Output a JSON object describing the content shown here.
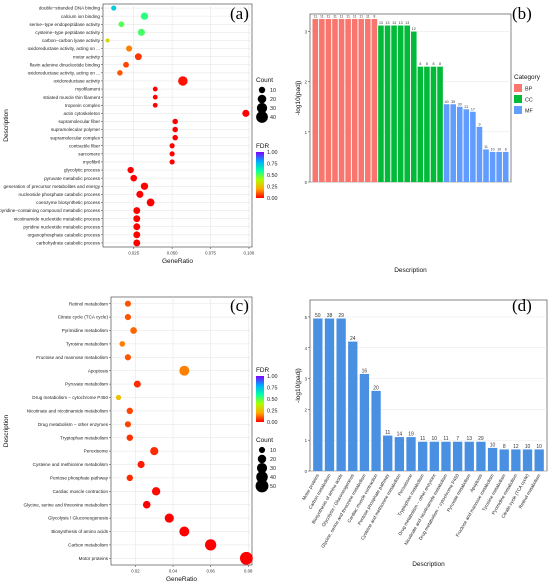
{
  "panels": {
    "a": {
      "letter": "(a)"
    },
    "b": {
      "letter": "(b)"
    },
    "c": {
      "letter": "(c)"
    },
    "d": {
      "letter": "(d)"
    }
  },
  "chart_data": [
    {
      "type": "scatter",
      "panel": "a",
      "xlabel": "GeneRatio",
      "ylabel": "Description",
      "xlim": [
        0.005,
        0.102
      ],
      "xticks": [
        "0.025",
        "0.050",
        "0.075",
        "0.100"
      ],
      "xtick_values": [
        0.025,
        0.05,
        0.075,
        0.1
      ],
      "grid": true,
      "size_legend": {
        "title": "Count",
        "values": [
          10,
          20,
          30,
          40
        ]
      },
      "color_legend": {
        "title": "FDR",
        "ticks": [
          "1.00",
          "0.75",
          "0.50",
          "0.25",
          "0.00"
        ],
        "colors": [
          "#8000ff",
          "#00aaff",
          "#00ffaa",
          "#aaff00",
          "#ffaa00",
          "#ff0000"
        ]
      },
      "points": [
        {
          "term": "double−stranded DNA binding",
          "x": 0.012,
          "count": 6,
          "fdr": 0.72
        },
        {
          "term": "calcium ion binding",
          "x": 0.032,
          "count": 14,
          "fdr": 0.55
        },
        {
          "term": "serine−type endopeptidase activity",
          "x": 0.017,
          "count": 8,
          "fdr": 0.5
        },
        {
          "term": "cysteine−type peptidase activity",
          "x": 0.03,
          "count": 13,
          "fdr": 0.52
        },
        {
          "term": "carbon−carbon lyase activity",
          "x": 0.008,
          "count": 3,
          "fdr": 0.3
        },
        {
          "term": "oxidoreductase activity, acting on ...",
          "x": 0.022,
          "count": 9,
          "fdr": 0.15
        },
        {
          "term": "motor activity",
          "x": 0.028,
          "count": 12,
          "fdr": 0.06
        },
        {
          "term": "flavin adenine dinucleotide binding",
          "x": 0.02,
          "count": 8,
          "fdr": 0.08
        },
        {
          "term": "oxidoreductase activity, acting on ...",
          "x": 0.016,
          "count": 7,
          "fdr": 0.1
        },
        {
          "term": "oxidoreductase activity",
          "x": 0.057,
          "count": 25,
          "fdr": 0.02
        },
        {
          "term": "myofilament",
          "x": 0.039,
          "count": 5,
          "fdr": 0.0
        },
        {
          "term": "striated muscle thin filament",
          "x": 0.039,
          "count": 5,
          "fdr": 0.0
        },
        {
          "term": "troponin complex",
          "x": 0.039,
          "count": 5,
          "fdr": 0.0
        },
        {
          "term": "actin cytoskeleton",
          "x": 0.098,
          "count": 13,
          "fdr": 0.0
        },
        {
          "term": "supramolecular fiber",
          "x": 0.052,
          "count": 7,
          "fdr": 0.0
        },
        {
          "term": "supramolecular polymer",
          "x": 0.052,
          "count": 7,
          "fdr": 0.0
        },
        {
          "term": "supramolecular complex",
          "x": 0.052,
          "count": 7,
          "fdr": 0.0
        },
        {
          "term": "contractile fiber",
          "x": 0.05,
          "count": 6,
          "fdr": 0.0
        },
        {
          "term": "sarcomere",
          "x": 0.05,
          "count": 6,
          "fdr": 0.0
        },
        {
          "term": "myofibril",
          "x": 0.05,
          "count": 6,
          "fdr": 0.0
        },
        {
          "term": "glycolytic process",
          "x": 0.023,
          "count": 10,
          "fdr": 0.0
        },
        {
          "term": "pyruvate metabolic process",
          "x": 0.025,
          "count": 11,
          "fdr": 0.0
        },
        {
          "term": "generation of precursor metabolites and energy",
          "x": 0.032,
          "count": 14,
          "fdr": 0.0
        },
        {
          "term": "nucleoside phosphate catabolic process",
          "x": 0.029,
          "count": 13,
          "fdr": 0.0
        },
        {
          "term": "coenzyme biosynthetic process",
          "x": 0.036,
          "count": 16,
          "fdr": 0.0
        },
        {
          "term": "pyridine−containing compound metabolic process",
          "x": 0.027,
          "count": 12,
          "fdr": 0.0
        },
        {
          "term": "nicotinamide nucleotide metabolic process",
          "x": 0.027,
          "count": 12,
          "fdr": 0.0
        },
        {
          "term": "pyridine nucleotide metabolic process",
          "x": 0.027,
          "count": 12,
          "fdr": 0.0
        },
        {
          "term": "organophosphate catabolic process",
          "x": 0.027,
          "count": 12,
          "fdr": 0.0
        },
        {
          "term": "carbohydrate catabolic process",
          "x": 0.027,
          "count": 12,
          "fdr": 0.0
        }
      ]
    },
    {
      "type": "bar",
      "panel": "b",
      "xlabel": "Description",
      "ylabel": "-log10(padj)",
      "ylim": [
        0,
        3.35
      ],
      "yticks": [
        0,
        1,
        2,
        3
      ],
      "legend": {
        "title": "Category",
        "position": "right",
        "items": [
          {
            "name": "BP",
            "color": "#f8766d"
          },
          {
            "name": "CC",
            "color": "#00ba38"
          },
          {
            "name": "MF",
            "color": "#619cff"
          }
        ]
      },
      "bars": [
        {
          "cat": "BP",
          "value": 3.25,
          "count": 11
        },
        {
          "cat": "BP",
          "value": 3.25,
          "count": 11
        },
        {
          "cat": "BP",
          "value": 3.25,
          "count": 11
        },
        {
          "cat": "BP",
          "value": 3.25,
          "count": 11
        },
        {
          "cat": "BP",
          "value": 3.25,
          "count": 11
        },
        {
          "cat": "BP",
          "value": 3.25,
          "count": 11
        },
        {
          "cat": "BP",
          "value": 3.25,
          "count": 11
        },
        {
          "cat": "BP",
          "value": 3.25,
          "count": 11
        },
        {
          "cat": "BP",
          "value": 3.25,
          "count": 11
        },
        {
          "cat": "BP",
          "value": 3.25,
          "count": 8
        },
        {
          "cat": "CC",
          "value": 3.12,
          "count": 13
        },
        {
          "cat": "CC",
          "value": 3.12,
          "count": 13
        },
        {
          "cat": "CC",
          "value": 3.12,
          "count": 13
        },
        {
          "cat": "CC",
          "value": 3.12,
          "count": 13
        },
        {
          "cat": "CC",
          "value": 3.12,
          "count": 13
        },
        {
          "cat": "CC",
          "value": 3.0,
          "count": 12
        },
        {
          "cat": "CC",
          "value": 2.3,
          "count": 8
        },
        {
          "cat": "CC",
          "value": 2.3,
          "count": 8
        },
        {
          "cat": "CC",
          "value": 2.3,
          "count": 8
        },
        {
          "cat": "CC",
          "value": 2.3,
          "count": 8
        },
        {
          "cat": "MF",
          "value": 1.55,
          "count": 40
        },
        {
          "cat": "MF",
          "value": 1.55,
          "count": 35
        },
        {
          "cat": "MF",
          "value": 1.5,
          "count": 30
        },
        {
          "cat": "MF",
          "value": 1.45,
          "count": 21
        },
        {
          "cat": "MF",
          "value": 1.4,
          "count": 17
        },
        {
          "cat": "MF",
          "value": 1.1,
          "count": 9
        },
        {
          "cat": "MF",
          "value": 0.65,
          "count": 11
        },
        {
          "cat": "MF",
          "value": 0.6,
          "count": 10
        },
        {
          "cat": "MF",
          "value": 0.6,
          "count": 10
        },
        {
          "cat": "MF",
          "value": 0.6,
          "count": 6
        }
      ]
    },
    {
      "type": "scatter",
      "panel": "c",
      "xlabel": "GeneRatio",
      "ylabel": "Description",
      "xlim": [
        0.007,
        0.082
      ],
      "xticks": [
        "0.02",
        "0.04",
        "0.06",
        "0.08"
      ],
      "xtick_values": [
        0.02,
        0.04,
        0.06,
        0.08
      ],
      "grid": true,
      "size_legend": {
        "title": "Count",
        "values": [
          10,
          20,
          30,
          40,
          50
        ]
      },
      "color_legend": {
        "title": "FDR",
        "ticks": [
          "1.00",
          "0.75",
          "0.50",
          "0.25",
          "0.00"
        ],
        "colors": [
          "#8000ff",
          "#00aaff",
          "#00ffaa",
          "#aaff00",
          "#ffaa00",
          "#ff0000"
        ]
      },
      "points": [
        {
          "term": "Retinol metabolism",
          "x": 0.016,
          "count": 10,
          "fdr": 0.1
        },
        {
          "term": "Citrate cycle (TCA cycle)",
          "x": 0.016,
          "count": 10,
          "fdr": 0.1
        },
        {
          "term": "Pyrimidine metabolism",
          "x": 0.019,
          "count": 12,
          "fdr": 0.12
        },
        {
          "term": "Tyrosine metabolism",
          "x": 0.013,
          "count": 8,
          "fdr": 0.15
        },
        {
          "term": "Fructose and mannose metabolism",
          "x": 0.016,
          "count": 10,
          "fdr": 0.1
        },
        {
          "term": "Apoptosis",
          "x": 0.046,
          "count": 29,
          "fdr": 0.15
        },
        {
          "term": "Pyruvate metabolism",
          "x": 0.021,
          "count": 13,
          "fdr": 0.05
        },
        {
          "term": "Drug metabolism − cytochrome P450",
          "x": 0.011,
          "count": 7,
          "fdr": 0.25
        },
        {
          "term": "Nicotinate and nicotinamide metabolism",
          "x": 0.017,
          "count": 11,
          "fdr": 0.08
        },
        {
          "term": "Drug metabolism − other enzymes",
          "x": 0.016,
          "count": 10,
          "fdr": 0.08
        },
        {
          "term": "Tryptophan metabolism",
          "x": 0.017,
          "count": 11,
          "fdr": 0.06
        },
        {
          "term": "Peroxisome",
          "x": 0.03,
          "count": 19,
          "fdr": 0.05
        },
        {
          "term": "Cysteine and methionine metabolism",
          "x": 0.023,
          "count": 14,
          "fdr": 0.03
        },
        {
          "term": "Pentose phosphate pathway",
          "x": 0.017,
          "count": 11,
          "fdr": 0.05
        },
        {
          "term": "Cardiac muscle contraction",
          "x": 0.031,
          "count": 20,
          "fdr": 0.01
        },
        {
          "term": "Glycine, serine and threonine metabolism",
          "x": 0.026,
          "count": 16,
          "fdr": 0.0
        },
        {
          "term": "Glycolysis / Gluconeogenesis",
          "x": 0.038,
          "count": 24,
          "fdr": 0.0
        },
        {
          "term": "Biosynthesis of amino acids",
          "x": 0.046,
          "count": 29,
          "fdr": 0.0
        },
        {
          "term": "Carbon metabolism",
          "x": 0.06,
          "count": 38,
          "fdr": 0.0
        },
        {
          "term": "Motor proteins",
          "x": 0.079,
          "count": 50,
          "fdr": 0.0
        }
      ]
    },
    {
      "type": "bar",
      "panel": "d",
      "xlabel": "Description",
      "ylabel": "-log10(padj)",
      "ylim": [
        0,
        5.55
      ],
      "yticks": [
        0,
        1,
        2,
        3,
        4,
        5
      ],
      "color": "#4a90e2",
      "categories": [
        "Motor proteins",
        "Carbon metabolism",
        "Biosynthesis of amino acids",
        "Glycolysis / Gluconeogenesis",
        "Glycine, serine and threonine metabolism",
        "Cardiac muscle contraction",
        "Pentose phosphate pathway",
        "Cysteine and methionine metabolism",
        "Peroxisome",
        "Tryptophan metabolism",
        "Drug metabolism − other enzymes",
        "Nicotinate and nicotinamide metabolism",
        "Drug metabolism − cytochrome P450",
        "Pyruvate metabolism",
        "Apoptosis",
        "Fructose and mannose metabolism",
        "Tyrosine metabolism",
        "Pyrimidine metabolism",
        "Citrate cycle (TCA cycle)",
        "Retinol metabolism"
      ],
      "values": [
        4.95,
        4.95,
        4.95,
        4.2,
        3.15,
        2.6,
        1.15,
        1.1,
        1.1,
        0.95,
        0.95,
        0.95,
        0.95,
        0.95,
        0.95,
        0.75,
        0.7,
        0.7,
        0.7,
        0.7
      ],
      "counts": [
        50,
        38,
        29,
        24,
        16,
        20,
        11,
        14,
        19,
        11,
        10,
        11,
        7,
        13,
        29,
        10,
        8,
        12,
        10,
        10
      ]
    }
  ]
}
